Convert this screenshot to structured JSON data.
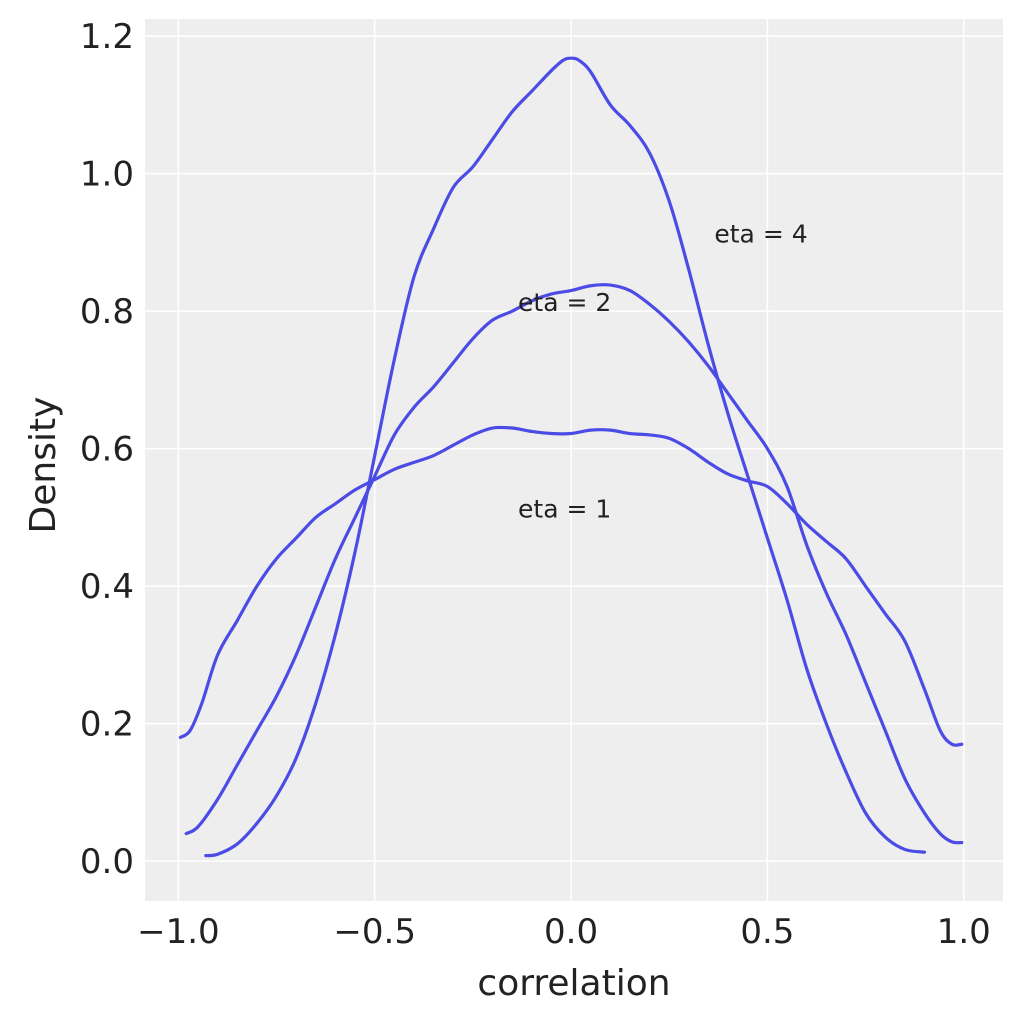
{
  "chart_data": {
    "type": "line",
    "title": "",
    "xlabel": "correlation",
    "ylabel": "Density",
    "xlim": [
      -1.085,
      1.1
    ],
    "ylim": [
      -0.058,
      1.225
    ],
    "xticks": [
      -1.0,
      -0.5,
      0.0,
      0.5,
      1.0
    ],
    "xtick_labels": [
      "−1.0",
      "−0.5",
      "0.0",
      "0.5",
      "1.0"
    ],
    "yticks": [
      0.0,
      0.2,
      0.4,
      0.6,
      0.8,
      1.0,
      1.2
    ],
    "ytick_labels": [
      "0.0",
      "0.2",
      "0.4",
      "0.6",
      "0.8",
      "1.0",
      "1.2"
    ],
    "grid": true,
    "legend": false,
    "background": "#eeeeee",
    "line_color": "#4b4be6",
    "series": [
      {
        "x": [
          -0.995,
          -0.97,
          -0.94,
          -0.9,
          -0.85,
          -0.8,
          -0.75,
          -0.7,
          -0.65,
          -0.6,
          -0.55,
          -0.5,
          -0.45,
          -0.4,
          -0.35,
          -0.3,
          -0.25,
          -0.2,
          -0.15,
          -0.1,
          -0.05,
          0.0,
          0.05,
          0.1,
          0.15,
          0.2,
          0.25,
          0.3,
          0.35,
          0.4,
          0.45,
          0.5,
          0.55,
          0.6,
          0.65,
          0.7,
          0.75,
          0.8,
          0.85,
          0.9,
          0.94,
          0.97,
          0.995
        ],
        "y": [
          0.18,
          0.19,
          0.23,
          0.3,
          0.35,
          0.4,
          0.44,
          0.47,
          0.5,
          0.52,
          0.54,
          0.555,
          0.57,
          0.58,
          0.59,
          0.605,
          0.62,
          0.63,
          0.63,
          0.625,
          0.622,
          0.622,
          0.627,
          0.627,
          0.622,
          0.62,
          0.615,
          0.6,
          0.58,
          0.563,
          0.553,
          0.545,
          0.52,
          0.49,
          0.465,
          0.44,
          0.4,
          0.36,
          0.32,
          0.25,
          0.19,
          0.17,
          0.17
        ],
        "annotation": {
          "text": "eta = 1",
          "x": -0.135,
          "y": 0.5
        }
      },
      {
        "x": [
          -0.98,
          -0.95,
          -0.9,
          -0.85,
          -0.8,
          -0.75,
          -0.7,
          -0.65,
          -0.6,
          -0.55,
          -0.5,
          -0.45,
          -0.4,
          -0.35,
          -0.3,
          -0.25,
          -0.2,
          -0.15,
          -0.1,
          -0.05,
          0.0,
          0.05,
          0.1,
          0.15,
          0.2,
          0.25,
          0.3,
          0.35,
          0.4,
          0.45,
          0.5,
          0.55,
          0.6,
          0.65,
          0.7,
          0.75,
          0.8,
          0.85,
          0.9,
          0.94,
          0.97,
          0.995
        ],
        "y": [
          0.04,
          0.05,
          0.09,
          0.14,
          0.19,
          0.24,
          0.3,
          0.37,
          0.44,
          0.5,
          0.56,
          0.62,
          0.66,
          0.69,
          0.725,
          0.76,
          0.787,
          0.8,
          0.815,
          0.825,
          0.83,
          0.837,
          0.838,
          0.83,
          0.81,
          0.785,
          0.755,
          0.72,
          0.68,
          0.64,
          0.6,
          0.545,
          0.46,
          0.39,
          0.33,
          0.26,
          0.19,
          0.12,
          0.07,
          0.04,
          0.028,
          0.027
        ],
        "annotation": {
          "text": "eta = 2",
          "x": -0.135,
          "y": 0.8
        }
      },
      {
        "x": [
          -0.93,
          -0.9,
          -0.85,
          -0.8,
          -0.75,
          -0.7,
          -0.65,
          -0.6,
          -0.55,
          -0.5,
          -0.45,
          -0.4,
          -0.35,
          -0.3,
          -0.25,
          -0.2,
          -0.15,
          -0.1,
          -0.05,
          -0.02,
          0.0,
          0.02,
          0.05,
          0.1,
          0.15,
          0.2,
          0.25,
          0.3,
          0.35,
          0.4,
          0.45,
          0.5,
          0.55,
          0.6,
          0.65,
          0.7,
          0.75,
          0.8,
          0.85,
          0.9
        ],
        "y": [
          0.008,
          0.01,
          0.025,
          0.055,
          0.095,
          0.15,
          0.23,
          0.33,
          0.45,
          0.59,
          0.73,
          0.85,
          0.92,
          0.98,
          1.01,
          1.05,
          1.09,
          1.12,
          1.15,
          1.165,
          1.168,
          1.165,
          1.148,
          1.1,
          1.07,
          1.03,
          0.96,
          0.86,
          0.75,
          0.65,
          0.56,
          0.47,
          0.38,
          0.28,
          0.2,
          0.13,
          0.07,
          0.035,
          0.017,
          0.013
        ],
        "annotation": {
          "text": "eta = 4",
          "x": 0.365,
          "y": 0.9
        }
      }
    ]
  }
}
